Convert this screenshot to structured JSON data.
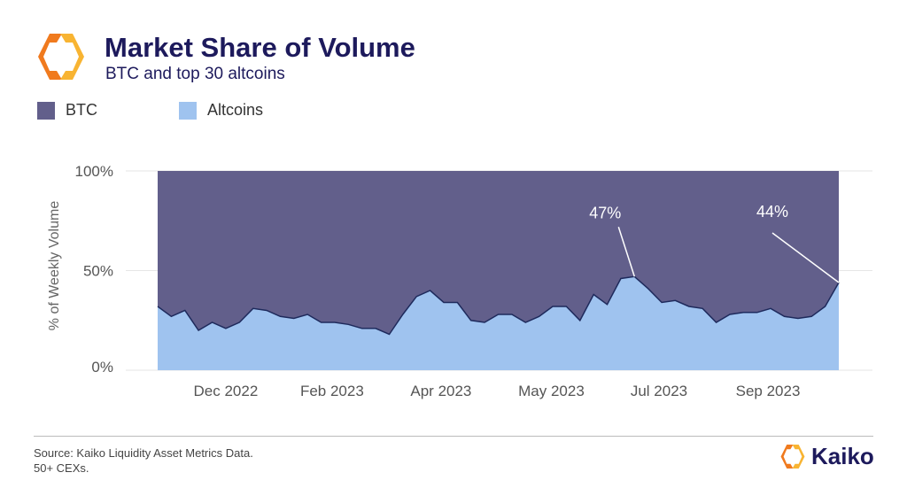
{
  "header": {
    "title": "Market Share of Volume",
    "subtitle": "BTC and top 30 altcoins"
  },
  "colors": {
    "btc": "#625f8b",
    "altcoins": "#9fc3ef",
    "line": "#1e2a5c",
    "title": "#1d1a5c",
    "logo_orange": "#f07a1e",
    "logo_yellow": "#f8b432"
  },
  "footer": {
    "source_line1": "Source: Kaiko Liquidity Asset Metrics Data.",
    "source_line2": "50+ CEXs.",
    "brand": "Kaiko"
  },
  "chart_data": {
    "type": "area",
    "stacked": true,
    "normalized": true,
    "ylabel": "% of Weekly Volume",
    "ylim": [
      0,
      100
    ],
    "yticks": [
      "0%",
      "50%",
      "100%"
    ],
    "xticks": [
      "Dec 2022",
      "Feb 2023",
      "Apr 2023",
      "May 2023",
      "Jul 2023",
      "Sep 2023"
    ],
    "legend": "top-left",
    "grid": true,
    "series": [
      {
        "name": "Altcoins",
        "values": [
          32,
          27,
          30,
          20,
          24,
          21,
          24,
          31,
          30,
          27,
          26,
          28,
          24,
          24,
          23,
          21,
          21,
          18,
          28,
          37,
          40,
          34,
          34,
          25,
          24,
          28,
          28,
          24,
          27,
          32,
          32,
          25,
          38,
          33,
          46,
          47,
          41,
          34,
          35,
          32,
          31,
          24,
          28,
          29,
          29,
          31,
          27,
          26,
          27,
          32,
          44
        ]
      },
      {
        "name": "BTC",
        "values": "remainder to 100%"
      }
    ],
    "annotations": [
      {
        "label": "47%",
        "series": "Altcoins",
        "point_index": 35
      },
      {
        "label": "44%",
        "series": "Altcoins",
        "point_index": 50
      }
    ]
  }
}
